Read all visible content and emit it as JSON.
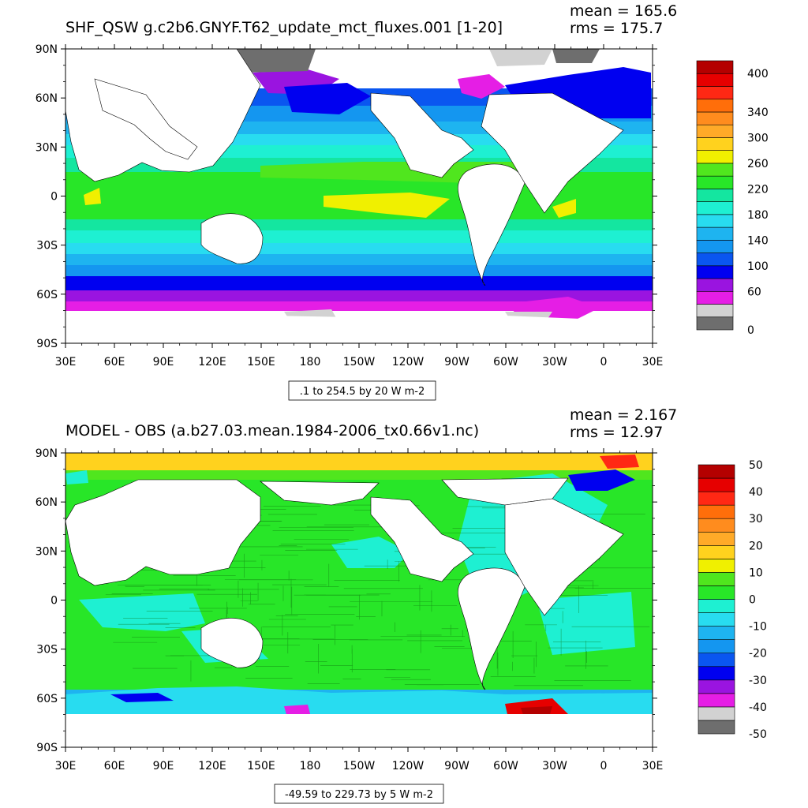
{
  "panels": [
    {
      "id": "top",
      "title": "SHF_QSW g.c2b6.GNYF.T62_update_mct_fluxes.001 [1-20]",
      "mean": "mean = 165.6",
      "rms": "rms = 175.7",
      "info": ".1 to 254.5 by 20 W m-2",
      "lat_labels": [
        "90N",
        "60N",
        "30N",
        "0",
        "30S",
        "60S",
        "90S"
      ],
      "lon_labels": [
        "30E",
        "60E",
        "90E",
        "120E",
        "150E",
        "180",
        "150W",
        "120W",
        "90W",
        "60W",
        "30W",
        "0",
        "30E"
      ],
      "colorbar": {
        "colors": [
          "#6e6e6e",
          "#d2d2d2",
          "#e51ee5",
          "#9a14e0",
          "#0000f0",
          "#0a56f0",
          "#1496f0",
          "#1eb4f0",
          "#28dcf0",
          "#1ef0d2",
          "#14e6a0",
          "#28e628",
          "#50e61e",
          "#f0f000",
          "#ffd21e",
          "#ffaa28",
          "#ff8c1e",
          "#ff6e0a",
          "#ff2814",
          "#e60000",
          "#b40000"
        ],
        "labels": [
          "0",
          "60",
          "100",
          "140",
          "180",
          "220",
          "260",
          "300",
          "340",
          "400"
        ],
        "label_bin_index": [
          0,
          3,
          5,
          7,
          9,
          11,
          13,
          15,
          17,
          20
        ]
      }
    },
    {
      "id": "bottom",
      "title": "MODEL - OBS (a.b27.03.mean.1984-2006_tx0.66v1.nc)",
      "mean": "mean = 2.167",
      "rms": "rms = 12.97",
      "info": "-49.59 to 229.73 by 5 W m-2",
      "lat_labels": [
        "90N",
        "60N",
        "30N",
        "0",
        "30S",
        "60S",
        "90S"
      ],
      "lon_labels": [
        "30E",
        "60E",
        "90E",
        "120E",
        "150E",
        "180",
        "150W",
        "120W",
        "90W",
        "60W",
        "30W",
        "0",
        "30E"
      ],
      "colorbar": {
        "colors": [
          "#6e6e6e",
          "#d2d2d2",
          "#e51ee5",
          "#9a14e0",
          "#0000f0",
          "#0a56f0",
          "#1496f0",
          "#1eb4f0",
          "#28dcf0",
          "#1ef0d2",
          "#28e628",
          "#50e61e",
          "#f0f000",
          "#ffd21e",
          "#ffaa28",
          "#ff8c1e",
          "#ff6e0a",
          "#ff2814",
          "#e60000",
          "#b40000"
        ],
        "labels": [
          "50",
          "40",
          "30",
          "20",
          "10",
          "0",
          "-10",
          "-20",
          "-30",
          "-40",
          "-50"
        ],
        "label_bin_index": [
          20,
          18,
          16,
          14,
          12,
          10,
          8,
          6,
          4,
          2,
          0
        ]
      }
    }
  ]
}
